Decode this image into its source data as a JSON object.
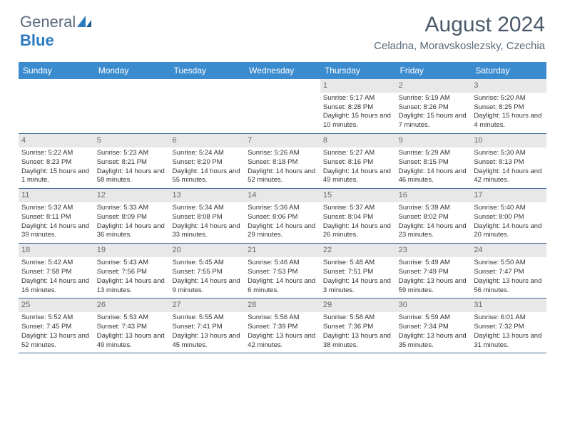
{
  "logo": {
    "gray": "General",
    "blue": "Blue"
  },
  "title": "August 2024",
  "location": "Celadna, Moravskoslezsky, Czechia",
  "colors": {
    "header_bg": "#3b8bcf",
    "header_text": "#ffffff",
    "daynum_bg": "#e8e8e8",
    "daynum_text": "#6a6a6a",
    "cell_text": "#333333",
    "divider": "#3b6a9a"
  },
  "day_labels": [
    "Sunday",
    "Monday",
    "Tuesday",
    "Wednesday",
    "Thursday",
    "Friday",
    "Saturday"
  ],
  "weeks": [
    [
      {
        "day": "",
        "sunrise": "",
        "sunset": "",
        "daylight": ""
      },
      {
        "day": "",
        "sunrise": "",
        "sunset": "",
        "daylight": ""
      },
      {
        "day": "",
        "sunrise": "",
        "sunset": "",
        "daylight": ""
      },
      {
        "day": "",
        "sunrise": "",
        "sunset": "",
        "daylight": ""
      },
      {
        "day": "1",
        "sunrise": "Sunrise: 5:17 AM",
        "sunset": "Sunset: 8:28 PM",
        "daylight": "Daylight: 15 hours and 10 minutes."
      },
      {
        "day": "2",
        "sunrise": "Sunrise: 5:19 AM",
        "sunset": "Sunset: 8:26 PM",
        "daylight": "Daylight: 15 hours and 7 minutes."
      },
      {
        "day": "3",
        "sunrise": "Sunrise: 5:20 AM",
        "sunset": "Sunset: 8:25 PM",
        "daylight": "Daylight: 15 hours and 4 minutes."
      }
    ],
    [
      {
        "day": "4",
        "sunrise": "Sunrise: 5:22 AM",
        "sunset": "Sunset: 8:23 PM",
        "daylight": "Daylight: 15 hours and 1 minute."
      },
      {
        "day": "5",
        "sunrise": "Sunrise: 5:23 AM",
        "sunset": "Sunset: 8:21 PM",
        "daylight": "Daylight: 14 hours and 58 minutes."
      },
      {
        "day": "6",
        "sunrise": "Sunrise: 5:24 AM",
        "sunset": "Sunset: 8:20 PM",
        "daylight": "Daylight: 14 hours and 55 minutes."
      },
      {
        "day": "7",
        "sunrise": "Sunrise: 5:26 AM",
        "sunset": "Sunset: 8:18 PM",
        "daylight": "Daylight: 14 hours and 52 minutes."
      },
      {
        "day": "8",
        "sunrise": "Sunrise: 5:27 AM",
        "sunset": "Sunset: 8:16 PM",
        "daylight": "Daylight: 14 hours and 49 minutes."
      },
      {
        "day": "9",
        "sunrise": "Sunrise: 5:29 AM",
        "sunset": "Sunset: 8:15 PM",
        "daylight": "Daylight: 14 hours and 46 minutes."
      },
      {
        "day": "10",
        "sunrise": "Sunrise: 5:30 AM",
        "sunset": "Sunset: 8:13 PM",
        "daylight": "Daylight: 14 hours and 42 minutes."
      }
    ],
    [
      {
        "day": "11",
        "sunrise": "Sunrise: 5:32 AM",
        "sunset": "Sunset: 8:11 PM",
        "daylight": "Daylight: 14 hours and 39 minutes."
      },
      {
        "day": "12",
        "sunrise": "Sunrise: 5:33 AM",
        "sunset": "Sunset: 8:09 PM",
        "daylight": "Daylight: 14 hours and 36 minutes."
      },
      {
        "day": "13",
        "sunrise": "Sunrise: 5:34 AM",
        "sunset": "Sunset: 8:08 PM",
        "daylight": "Daylight: 14 hours and 33 minutes."
      },
      {
        "day": "14",
        "sunrise": "Sunrise: 5:36 AM",
        "sunset": "Sunset: 8:06 PM",
        "daylight": "Daylight: 14 hours and 29 minutes."
      },
      {
        "day": "15",
        "sunrise": "Sunrise: 5:37 AM",
        "sunset": "Sunset: 8:04 PM",
        "daylight": "Daylight: 14 hours and 26 minutes."
      },
      {
        "day": "16",
        "sunrise": "Sunrise: 5:39 AM",
        "sunset": "Sunset: 8:02 PM",
        "daylight": "Daylight: 14 hours and 23 minutes."
      },
      {
        "day": "17",
        "sunrise": "Sunrise: 5:40 AM",
        "sunset": "Sunset: 8:00 PM",
        "daylight": "Daylight: 14 hours and 20 minutes."
      }
    ],
    [
      {
        "day": "18",
        "sunrise": "Sunrise: 5:42 AM",
        "sunset": "Sunset: 7:58 PM",
        "daylight": "Daylight: 14 hours and 16 minutes."
      },
      {
        "day": "19",
        "sunrise": "Sunrise: 5:43 AM",
        "sunset": "Sunset: 7:56 PM",
        "daylight": "Daylight: 14 hours and 13 minutes."
      },
      {
        "day": "20",
        "sunrise": "Sunrise: 5:45 AM",
        "sunset": "Sunset: 7:55 PM",
        "daylight": "Daylight: 14 hours and 9 minutes."
      },
      {
        "day": "21",
        "sunrise": "Sunrise: 5:46 AM",
        "sunset": "Sunset: 7:53 PM",
        "daylight": "Daylight: 14 hours and 6 minutes."
      },
      {
        "day": "22",
        "sunrise": "Sunrise: 5:48 AM",
        "sunset": "Sunset: 7:51 PM",
        "daylight": "Daylight: 14 hours and 3 minutes."
      },
      {
        "day": "23",
        "sunrise": "Sunrise: 5:49 AM",
        "sunset": "Sunset: 7:49 PM",
        "daylight": "Daylight: 13 hours and 59 minutes."
      },
      {
        "day": "24",
        "sunrise": "Sunrise: 5:50 AM",
        "sunset": "Sunset: 7:47 PM",
        "daylight": "Daylight: 13 hours and 56 minutes."
      }
    ],
    [
      {
        "day": "25",
        "sunrise": "Sunrise: 5:52 AM",
        "sunset": "Sunset: 7:45 PM",
        "daylight": "Daylight: 13 hours and 52 minutes."
      },
      {
        "day": "26",
        "sunrise": "Sunrise: 5:53 AM",
        "sunset": "Sunset: 7:43 PM",
        "daylight": "Daylight: 13 hours and 49 minutes."
      },
      {
        "day": "27",
        "sunrise": "Sunrise: 5:55 AM",
        "sunset": "Sunset: 7:41 PM",
        "daylight": "Daylight: 13 hours and 45 minutes."
      },
      {
        "day": "28",
        "sunrise": "Sunrise: 5:56 AM",
        "sunset": "Sunset: 7:39 PM",
        "daylight": "Daylight: 13 hours and 42 minutes."
      },
      {
        "day": "29",
        "sunrise": "Sunrise: 5:58 AM",
        "sunset": "Sunset: 7:36 PM",
        "daylight": "Daylight: 13 hours and 38 minutes."
      },
      {
        "day": "30",
        "sunrise": "Sunrise: 5:59 AM",
        "sunset": "Sunset: 7:34 PM",
        "daylight": "Daylight: 13 hours and 35 minutes."
      },
      {
        "day": "31",
        "sunrise": "Sunrise: 6:01 AM",
        "sunset": "Sunset: 7:32 PM",
        "daylight": "Daylight: 13 hours and 31 minutes."
      }
    ]
  ]
}
